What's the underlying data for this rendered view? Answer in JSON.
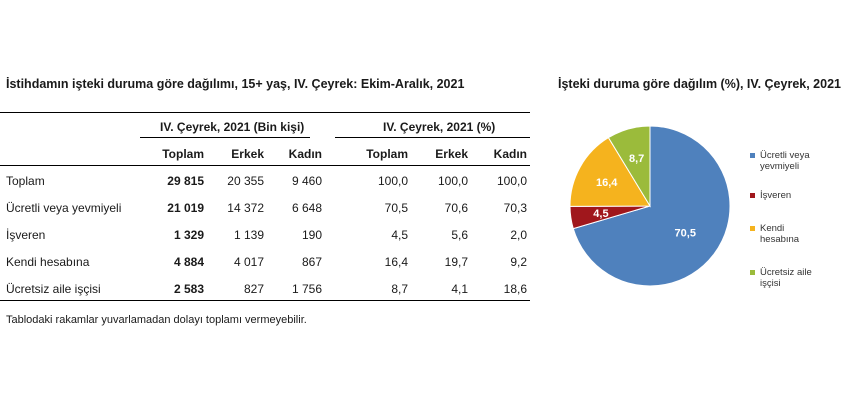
{
  "table": {
    "title": "İstihdamın işteki duruma göre dağılımı, 15+ yaş, IV. Çeyrek: Ekim-Aralık, 2021",
    "group_headers": [
      "IV. Çeyrek, 2021 (Bin kişi)",
      "IV. Çeyrek, 2021 (%)"
    ],
    "columns": [
      "Toplam",
      "Erkek",
      "Kadın",
      "Toplam",
      "Erkek",
      "Kadın"
    ],
    "rows": [
      {
        "label": "Toplam",
        "values": [
          "29 815",
          "20 355",
          "9 460",
          "100,0",
          "100,0",
          "100,0"
        ]
      },
      {
        "label": "Ücretli veya yevmiyeli",
        "values": [
          "21 019",
          "14 372",
          "6 648",
          "70,5",
          "70,6",
          "70,3"
        ]
      },
      {
        "label": "İşveren",
        "values": [
          "1 329",
          "1 139",
          "190",
          "4,5",
          "5,6",
          "2,0"
        ]
      },
      {
        "label": "Kendi hesabına",
        "values": [
          "4 884",
          "4 017",
          "867",
          "16,4",
          "19,7",
          "9,2"
        ]
      },
      {
        "label": "Ücretsiz aile işçisi",
        "values": [
          "2 583",
          "827",
          "1 756",
          "8,7",
          "4,1",
          "18,6"
        ]
      }
    ],
    "footnote": "Tablodaki rakamlar yuvarlamadan dolayı toplamı vermeyebilir."
  },
  "chart_data": {
    "type": "pie",
    "title": "İşteki duruma göre dağılım (%), IV. Çeyrek, 2021",
    "slices": [
      {
        "label": "Ücretli veya yevmiyeli",
        "value": 70.5,
        "display": "70,5",
        "color": "#4F81BD"
      },
      {
        "label": "İşveren",
        "value": 4.5,
        "display": "4,5",
        "color": "#A0171C"
      },
      {
        "label": "Kendi hesabına",
        "value": 16.4,
        "display": "16,4",
        "color": "#F5B31E"
      },
      {
        "label": "Ücretsiz aile işçisi",
        "value": 8.7,
        "display": "8,7",
        "color": "#9BBB3B"
      }
    ],
    "legend": [
      {
        "lines": [
          "Ücretli veya",
          "yevmiyeli"
        ],
        "color": "#4F81BD"
      },
      {
        "lines": [
          "İşveren"
        ],
        "color": "#A0171C"
      },
      {
        "lines": [
          "Kendi",
          "hesabına"
        ],
        "color": "#F5B31E"
      },
      {
        "lines": [
          "Ücretsiz aile",
          "işçisi"
        ],
        "color": "#9BBB3B"
      }
    ],
    "legend_position": "right"
  }
}
